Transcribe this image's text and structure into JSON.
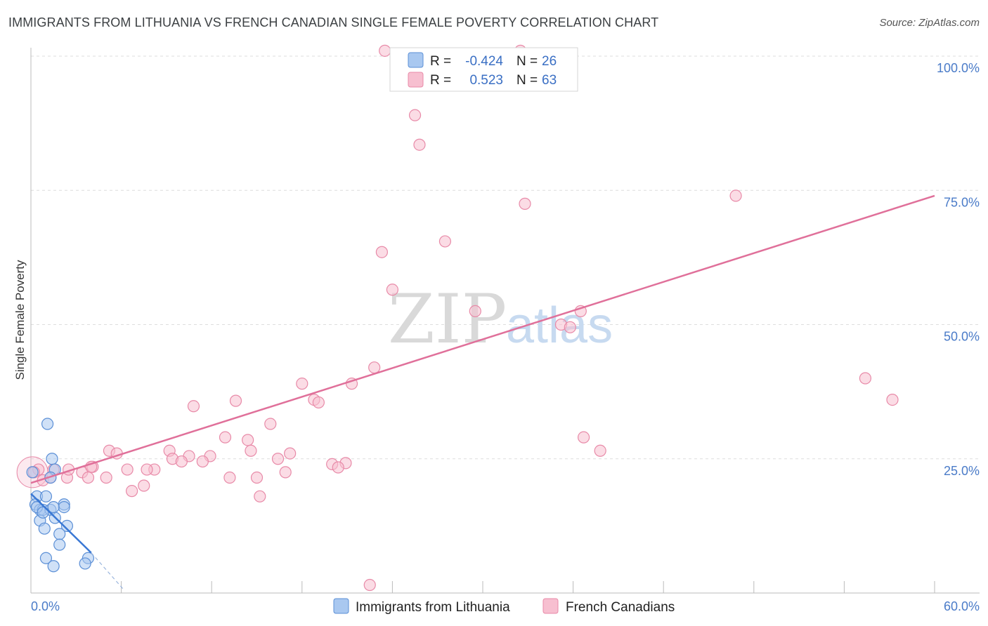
{
  "header": {
    "title": "IMMIGRANTS FROM LITHUANIA VS FRENCH CANADIAN SINGLE FEMALE POVERTY CORRELATION CHART",
    "source": "Source: ZipAtlas.com"
  },
  "watermark": {
    "zip": "ZIP",
    "atlas": "atlas"
  },
  "colors": {
    "blue_fill": "#a9c8f0",
    "blue_stroke": "#5b8fd6",
    "blue_line": "#3a78d4",
    "pink_fill": "#f7bfd0",
    "pink_stroke": "#e88aa8",
    "pink_line": "#e0709a",
    "tick_text": "#4a7bc8",
    "grid": "#dddddd"
  },
  "legend_top": {
    "rows": [
      {
        "r_label": "R =",
        "r_value": "-0.424",
        "n_label": "N =",
        "n_value": "26"
      },
      {
        "r_label": "R =",
        "r_value": "0.523",
        "n_label": "N =",
        "n_value": "63"
      }
    ]
  },
  "chart_data": {
    "type": "scatter",
    "title": "IMMIGRANTS FROM LITHUANIA VS FRENCH CANADIAN SINGLE FEMALE POVERTY CORRELATION CHART",
    "xlabel": "",
    "ylabel": "Single Female Poverty",
    "xlim": [
      0,
      60
    ],
    "ylim": [
      0,
      100
    ],
    "x_tick_labels": [
      "0.0%",
      "60.0%"
    ],
    "y_tick_labels": [
      "100.0%",
      "75.0%",
      "50.0%",
      "25.0%"
    ],
    "y_ticks": [
      100,
      75,
      50,
      25
    ],
    "series": [
      {
        "name": "Immigrants from Lithuania",
        "color": "blue",
        "r": -0.424,
        "n": 26,
        "trend": {
          "x0": 0,
          "y0": 18.5,
          "x1": 4,
          "y1": 7.5,
          "dash_to_x": 6.2,
          "dash_to_y": 0.5
        },
        "points": [
          [
            0.1,
            22.5
          ],
          [
            1.1,
            31.5
          ],
          [
            1.4,
            25.0
          ],
          [
            1.6,
            23.0
          ],
          [
            1.3,
            21.5
          ],
          [
            0.4,
            18.0
          ],
          [
            1.0,
            18.0
          ],
          [
            0.3,
            16.5
          ],
          [
            0.6,
            15.5
          ],
          [
            0.8,
            15.5
          ],
          [
            1.3,
            15.5
          ],
          [
            2.2,
            16.5
          ],
          [
            2.2,
            16.0
          ],
          [
            0.6,
            13.5
          ],
          [
            1.6,
            14.0
          ],
          [
            2.4,
            12.5
          ],
          [
            0.9,
            12.0
          ],
          [
            1.9,
            11.0
          ],
          [
            1.9,
            9.0
          ],
          [
            1.0,
            6.5
          ],
          [
            3.8,
            6.5
          ],
          [
            1.5,
            5.0
          ],
          [
            3.6,
            5.5
          ],
          [
            0.4,
            16.0
          ],
          [
            1.5,
            16.0
          ],
          [
            0.8,
            15.0
          ]
        ]
      },
      {
        "name": "French Canadians",
        "color": "pink",
        "r": 0.523,
        "n": 63,
        "trend": {
          "x0": 0,
          "y0": 20.5,
          "x1": 60,
          "y1": 74.0
        },
        "points": [
          [
            23.5,
            101.0
          ],
          [
            25.5,
            89.0
          ],
          [
            25.8,
            83.5
          ],
          [
            32.5,
            101.0
          ],
          [
            46.8,
            74.0
          ],
          [
            32.8,
            72.5
          ],
          [
            27.5,
            65.5
          ],
          [
            23.3,
            63.5
          ],
          [
            24.0,
            56.5
          ],
          [
            29.5,
            52.5
          ],
          [
            35.2,
            50.0
          ],
          [
            36.5,
            52.5
          ],
          [
            35.8,
            49.5
          ],
          [
            22.8,
            42.0
          ],
          [
            21.3,
            39.0
          ],
          [
            18.0,
            39.0
          ],
          [
            18.8,
            36.0
          ],
          [
            19.1,
            35.5
          ],
          [
            13.6,
            35.8
          ],
          [
            10.8,
            34.8
          ],
          [
            15.9,
            31.5
          ],
          [
            12.9,
            29.0
          ],
          [
            14.4,
            28.5
          ],
          [
            9.2,
            26.5
          ],
          [
            14.6,
            26.5
          ],
          [
            10.5,
            25.5
          ],
          [
            5.2,
            26.5
          ],
          [
            5.7,
            26.0
          ],
          [
            9.4,
            25.0
          ],
          [
            11.9,
            25.5
          ],
          [
            16.4,
            25.0
          ],
          [
            17.2,
            26.0
          ],
          [
            10.0,
            24.5
          ],
          [
            11.4,
            24.5
          ],
          [
            8.2,
            23.0
          ],
          [
            16.9,
            22.5
          ],
          [
            20.0,
            24.0
          ],
          [
            20.9,
            24.2
          ],
          [
            20.4,
            23.4
          ],
          [
            0.5,
            23.0
          ],
          [
            1.5,
            23.0
          ],
          [
            4.1,
            23.5
          ],
          [
            3.4,
            22.5
          ],
          [
            2.4,
            21.5
          ],
          [
            6.4,
            23.0
          ],
          [
            7.7,
            23.0
          ],
          [
            3.8,
            21.5
          ],
          [
            5.0,
            21.5
          ],
          [
            0.8,
            21.0
          ],
          [
            1.3,
            21.5
          ],
          [
            7.5,
            20.0
          ],
          [
            6.7,
            19.0
          ],
          [
            13.2,
            21.5
          ],
          [
            15.0,
            21.5
          ],
          [
            15.2,
            18.0
          ],
          [
            22.5,
            1.5
          ],
          [
            36.7,
            29.0
          ],
          [
            37.8,
            26.5
          ],
          [
            55.4,
            40.0
          ],
          [
            57.2,
            36.0
          ],
          [
            4.0,
            23.5
          ],
          [
            0.2,
            22.5
          ],
          [
            2.5,
            23.0
          ]
        ]
      }
    ]
  },
  "legend_bottom": {
    "items": [
      {
        "label": "Immigrants from Lithuania",
        "color": "blue"
      },
      {
        "label": "French Canadians",
        "color": "pink"
      }
    ]
  }
}
